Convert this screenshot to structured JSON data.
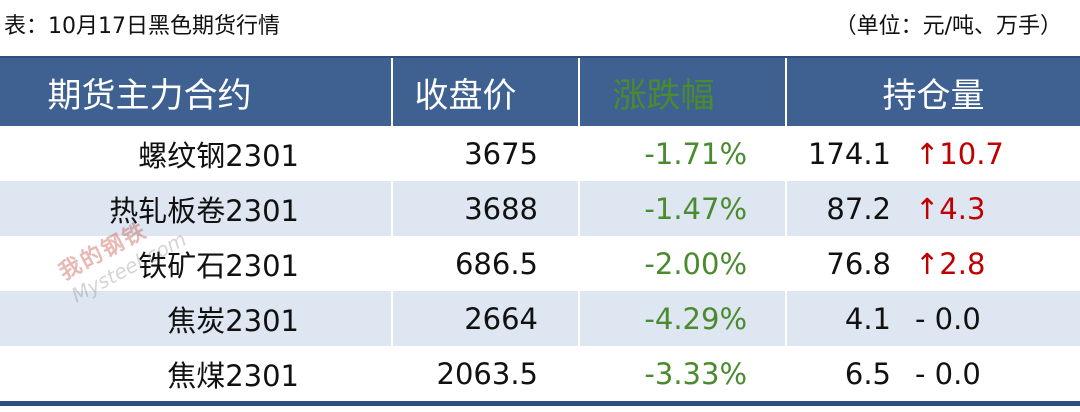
{
  "caption": {
    "title": "表：10月17日黑色期货行情",
    "unit": "（单位：元/吨、万手）"
  },
  "watermark": {
    "logo": "我的钢铁",
    "text": "Mysteel.com"
  },
  "table": {
    "header": [
      "期货主力合约",
      "收盘价",
      "涨跌幅",
      "持仓量"
    ],
    "rows": [
      [
        "螺纹钢2301",
        "3675",
        "-1.71%",
        "174.1",
        "↑10.7"
      ],
      [
        "热轧板卷2301",
        "3688",
        "-1.47%",
        "87.2",
        "↑4.3"
      ],
      [
        "铁矿石2301",
        "686.5",
        "-2.00%",
        "76.8",
        "↑2.8"
      ],
      [
        "焦炭2301",
        "2664",
        "-4.29%",
        "4.1",
        "- 0.0"
      ],
      [
        "焦煤2301",
        "2063.5",
        "-3.33%",
        "6.5",
        "- 0.0"
      ]
    ]
  }
}
